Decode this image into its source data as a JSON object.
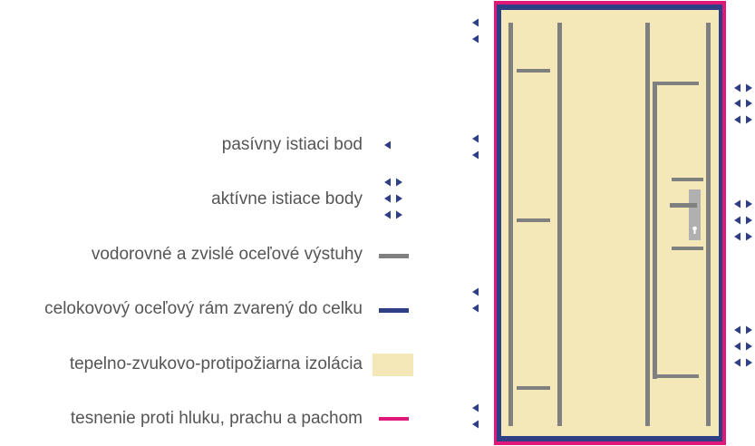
{
  "legend": {
    "passive_point": "pasívny istiaci bod",
    "active_points": "aktívne istiace body",
    "reinforcements": "vodorovné a zvislé oceľové výstuhy",
    "frame": "celokovový oceľový rám zvarený do celku",
    "insulation": "tepelno-zvukovo-protipožiarna izolácia",
    "seal": "tesnenie proti  hluku, prachu a pachom"
  },
  "colors": {
    "seal": "#e0187a",
    "frame": "#2e3f85",
    "insulation": "#f4e8b8",
    "reinforcement": "#808080",
    "arrow": "#2e3f85",
    "text": "#555555"
  },
  "icons": {
    "passive": "arrow-left-icon",
    "active": "double-arrow-icon"
  }
}
